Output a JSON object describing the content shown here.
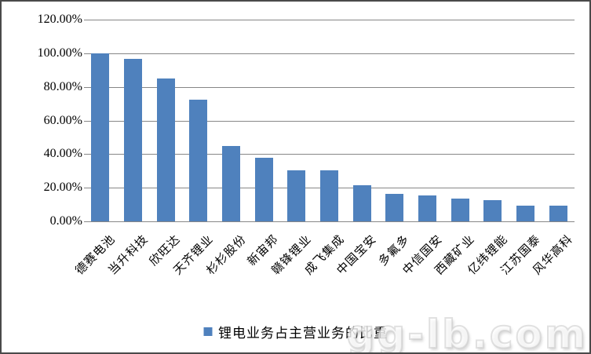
{
  "chart_data": {
    "type": "bar",
    "title": "",
    "xlabel": "",
    "ylabel": "",
    "categories": [
      "德赛电池",
      "当升科技",
      "欣旺达",
      "天齐锂业",
      "杉杉股份",
      "新宙邦",
      "赣锋锂业",
      "成飞集成",
      "中国宝安",
      "多氟多",
      "中信国安",
      "西藏矿业",
      "亿纬锂能",
      "江苏国泰",
      "风华高科"
    ],
    "series": [
      {
        "name": "锂电业务占主营业务的比重",
        "values": [
          100,
          96.5,
          85,
          72.2,
          44.7,
          38,
          30.5,
          30.2,
          21.5,
          16.5,
          15.4,
          13.6,
          12.8,
          9.4,
          9.4
        ]
      }
    ],
    "ylim": [
      0,
      120
    ],
    "ytick_values": [
      0,
      20,
      40,
      60,
      80,
      100,
      120
    ],
    "ytick_labels": [
      "0.00%",
      "20.00%",
      "40.00%",
      "60.00%",
      "80.00%",
      "100.00%",
      "120.00%"
    ],
    "grid": true,
    "legend_position": "bottom",
    "bar_color": "#4F81BD",
    "gridline_color": "#878787"
  },
  "legend": {
    "marker_icon": "legend-square-icon",
    "marker_color": "#4F81BD",
    "label": "锂电业务占主营业务的比重"
  },
  "watermark": {
    "text": "gg-lb.com"
  }
}
